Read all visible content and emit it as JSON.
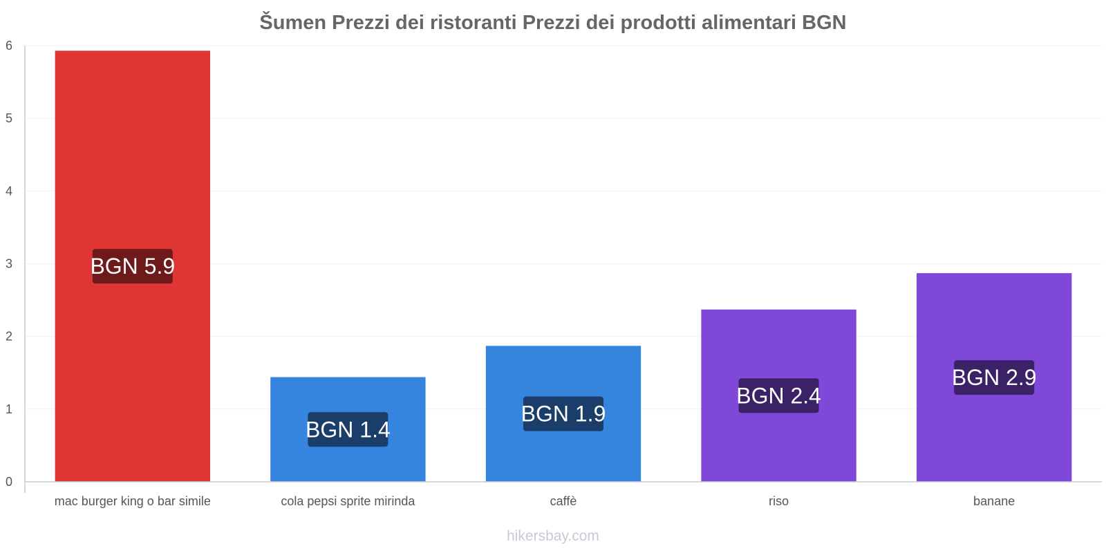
{
  "chart_data": {
    "type": "bar",
    "title": "Šumen Prezzi dei ristoranti Prezzi dei prodotti alimentari BGN",
    "categories": [
      "mac burger king o bar simile",
      "cola pepsi sprite mirinda",
      "caffè",
      "riso",
      "banane"
    ],
    "values": [
      5.93,
      1.44,
      1.87,
      2.37,
      2.87
    ],
    "data_labels": [
      "BGN 5.9",
      "BGN 1.4",
      "BGN 1.9",
      "BGN 2.4",
      "BGN 2.9"
    ],
    "bar_colors": [
      "#e03535",
      "#3584de",
      "#3584de",
      "#8048d8",
      "#8048d8"
    ],
    "label_box_colors": [
      "#6e1a1a",
      "#1a3d69",
      "#1a3d69",
      "#3b2166",
      "#3b2166"
    ],
    "xlabel": "",
    "ylabel": "",
    "ylim": [
      0,
      6
    ],
    "yticks": [
      0,
      1,
      2,
      3,
      4,
      5,
      6
    ],
    "grid": true,
    "legend": "none"
  },
  "footer": {
    "source": "hikersbay.com"
  }
}
